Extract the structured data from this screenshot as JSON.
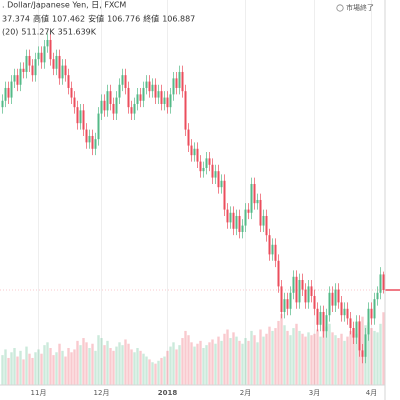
{
  "chart_data": {
    "type": "candlestick",
    "title": ". Dollar/Japanese Yen, 日, FXCM",
    "legend_row": [
      "37.374",
      "高値",
      "107.462",
      "安値",
      "106.776",
      "終値",
      "106.887"
    ],
    "volume_row": [
      "(20)",
      "511.27K",
      "351.639K"
    ],
    "status": "市場終了",
    "categories": [
      null,
      null,
      null,
      null,
      null,
      null,
      null,
      null,
      null,
      null,
      null,
      null,
      "11月",
      null,
      null,
      null,
      null,
      null,
      null,
      null,
      null,
      null,
      null,
      null,
      null,
      null,
      null,
      null,
      null,
      null,
      null,
      null,
      null,
      "12月",
      null,
      null,
      null,
      null,
      null,
      null,
      null,
      null,
      null,
      null,
      null,
      null,
      null,
      null,
      null,
      null,
      null,
      null,
      null,
      null,
      null,
      "2018",
      null,
      null,
      null,
      null,
      null,
      null,
      null,
      null,
      null,
      null,
      null,
      null,
      null,
      null,
      null,
      null,
      null,
      null,
      null,
      null,
      null,
      null,
      null,
      null,
      null,
      "2月",
      null,
      null,
      null,
      null,
      null,
      null,
      null,
      null,
      null,
      null,
      null,
      null,
      null,
      null,
      null,
      null,
      null,
      null,
      null,
      null,
      null,
      null,
      "3月",
      null,
      null,
      null,
      null,
      null,
      null,
      null,
      null,
      null,
      null,
      null,
      null,
      null,
      null,
      null,
      null,
      null,
      null,
      "4月",
      null,
      null,
      null,
      null
    ],
    "open": [
      112.6,
      112.8,
      113.2,
      112.9,
      113.4,
      113.6,
      113.3,
      113.8,
      113.7,
      114.2,
      113.9,
      113.6,
      114.1,
      114.3,
      114.0,
      114.5,
      114.7,
      114.1,
      113.8,
      114.2,
      113.5,
      113.9,
      113.6,
      113.2,
      112.9,
      112.6,
      112.1,
      112.5,
      111.9,
      111.5,
      111.7,
      111.3,
      111.6,
      112.4,
      112.8,
      112.5,
      113.1,
      112.7,
      112.4,
      112.9,
      113.3,
      113.6,
      113.2,
      112.6,
      112.4,
      112.7,
      113.0,
      112.8,
      113.2,
      113.4,
      113.1,
      113.3,
      112.9,
      113.1,
      112.7,
      112.9,
      112.6,
      113.0,
      113.5,
      113.2,
      113.7,
      113.1,
      111.9,
      111.4,
      111.1,
      111.3,
      110.9,
      110.6,
      110.7,
      111.0,
      110.8,
      110.4,
      110.6,
      110.1,
      110.3,
      109.4,
      109.0,
      109.3,
      108.8,
      109.2,
      108.7,
      108.9,
      109.4,
      109.3,
      110.2,
      109.6,
      109.7,
      108.9,
      109.2,
      108.6,
      108.0,
      108.3,
      107.8,
      107.0,
      106.2,
      106.6,
      106.3,
      106.8,
      107.3,
      106.5,
      107.2,
      106.9,
      106.5,
      107.0,
      106.7,
      106.3,
      105.8,
      106.2,
      105.6,
      106.1,
      106.8,
      106.4,
      106.9,
      106.5,
      106.1,
      106.3,
      106.0,
      105.7,
      105.4,
      105.9,
      105.0,
      104.8,
      105.5,
      106.3,
      106.0,
      106.6,
      106.8,
      107.374
    ],
    "high": [
      113.0,
      113.4,
      113.4,
      113.6,
      113.8,
      113.8,
      114.0,
      114.0,
      114.4,
      114.4,
      114.1,
      114.3,
      114.5,
      114.5,
      114.7,
      114.9,
      114.9,
      114.3,
      114.4,
      114.4,
      114.1,
      114.1,
      113.8,
      113.4,
      113.1,
      112.8,
      112.7,
      112.7,
      112.1,
      111.9,
      111.9,
      111.8,
      112.6,
      113.0,
      113.0,
      113.3,
      113.3,
      112.9,
      113.1,
      113.5,
      113.8,
      113.8,
      113.4,
      112.8,
      112.9,
      113.2,
      113.2,
      113.4,
      113.6,
      113.6,
      113.5,
      113.5,
      113.3,
      113.3,
      113.1,
      113.1,
      113.2,
      113.7,
      113.7,
      113.9,
      113.9,
      113.3,
      112.1,
      111.6,
      111.5,
      111.5,
      111.1,
      110.9,
      111.2,
      111.2,
      111.0,
      110.8,
      110.8,
      110.5,
      110.5,
      109.6,
      109.5,
      109.5,
      109.4,
      109.4,
      109.1,
      109.6,
      109.6,
      110.4,
      110.4,
      109.9,
      109.9,
      109.4,
      109.4,
      108.8,
      108.5,
      108.5,
      108.0,
      107.2,
      106.8,
      106.8,
      107.0,
      107.5,
      107.5,
      107.4,
      107.4,
      107.1,
      107.2,
      107.2,
      106.9,
      106.5,
      106.4,
      106.4,
      106.3,
      107.0,
      107.0,
      107.1,
      107.1,
      106.7,
      106.5,
      106.5,
      106.2,
      105.9,
      106.1,
      106.1,
      105.2,
      105.7,
      106.5,
      106.5,
      106.8,
      107.0,
      107.6,
      107.462
    ],
    "low": [
      112.4,
      112.6,
      112.7,
      112.7,
      113.2,
      113.1,
      113.1,
      113.5,
      113.5,
      113.7,
      113.4,
      113.4,
      113.9,
      113.8,
      113.8,
      114.3,
      113.9,
      113.6,
      113.6,
      113.3,
      113.3,
      113.4,
      113.0,
      112.7,
      112.4,
      111.9,
      111.9,
      111.7,
      111.3,
      111.3,
      111.1,
      111.1,
      111.4,
      112.2,
      112.3,
      112.3,
      112.5,
      112.2,
      112.2,
      112.7,
      113.1,
      113.0,
      112.4,
      112.2,
      112.2,
      112.5,
      112.6,
      112.6,
      113.0,
      112.9,
      112.9,
      112.7,
      112.7,
      112.5,
      112.5,
      112.4,
      112.4,
      112.8,
      113.0,
      113.0,
      112.9,
      111.7,
      111.2,
      110.9,
      110.9,
      110.7,
      110.4,
      110.4,
      110.5,
      110.6,
      110.2,
      110.2,
      109.9,
      109.9,
      109.2,
      108.8,
      108.8,
      108.6,
      108.6,
      108.5,
      108.5,
      108.7,
      109.1,
      109.1,
      109.4,
      109.4,
      108.7,
      108.7,
      108.4,
      107.8,
      107.8,
      107.6,
      106.8,
      106.0,
      106.0,
      106.1,
      106.1,
      106.6,
      106.3,
      106.3,
      106.7,
      106.3,
      106.3,
      106.5,
      106.1,
      105.6,
      105.6,
      105.4,
      105.4,
      105.9,
      106.2,
      106.2,
      106.3,
      105.9,
      105.9,
      105.8,
      105.5,
      105.2,
      105.2,
      104.8,
      104.6,
      104.6,
      105.3,
      105.8,
      105.8,
      106.4,
      106.6,
      106.776
    ],
    "close": [
      112.8,
      113.2,
      112.9,
      113.4,
      113.6,
      113.3,
      113.8,
      113.7,
      114.2,
      113.9,
      113.6,
      114.1,
      114.3,
      114.0,
      114.5,
      114.7,
      114.1,
      113.8,
      114.2,
      113.5,
      113.9,
      113.6,
      113.2,
      112.9,
      112.6,
      112.1,
      112.5,
      111.9,
      111.5,
      111.7,
      111.3,
      111.6,
      112.4,
      112.8,
      112.5,
      113.1,
      112.7,
      112.4,
      112.9,
      113.3,
      113.6,
      113.2,
      112.6,
      112.4,
      112.7,
      113.0,
      112.8,
      113.2,
      113.4,
      113.1,
      113.3,
      112.9,
      113.1,
      112.7,
      112.9,
      112.6,
      113.0,
      113.5,
      113.2,
      113.7,
      113.1,
      111.9,
      111.4,
      111.1,
      111.3,
      110.9,
      110.6,
      110.7,
      111.0,
      110.8,
      110.4,
      110.6,
      110.1,
      110.3,
      109.4,
      109.0,
      109.3,
      108.8,
      109.2,
      108.7,
      108.9,
      109.4,
      109.3,
      110.2,
      109.6,
      109.7,
      108.9,
      109.2,
      108.6,
      108.0,
      108.3,
      107.8,
      107.0,
      106.2,
      106.6,
      106.3,
      106.8,
      107.3,
      106.5,
      107.2,
      106.9,
      106.5,
      107.0,
      106.7,
      106.3,
      105.8,
      106.2,
      105.6,
      106.1,
      106.8,
      106.4,
      106.9,
      106.5,
      106.1,
      106.3,
      106.0,
      105.7,
      105.4,
      105.9,
      105.0,
      104.8,
      105.5,
      106.3,
      106.0,
      106.6,
      106.8,
      107.374,
      106.887
    ],
    "volume": [
      210,
      250,
      190,
      230,
      260,
      200,
      240,
      180,
      270,
      220,
      190,
      230,
      250,
      220,
      280,
      300,
      260,
      210,
      230,
      290,
      240,
      200,
      260,
      230,
      250,
      310,
      280,
      330,
      300,
      260,
      290,
      240,
      350,
      330,
      280,
      310,
      260,
      240,
      270,
      300,
      280,
      320,
      290,
      250,
      230,
      260,
      240,
      220,
      200,
      180,
      160,
      150,
      170,
      190,
      200,
      240,
      270,
      300,
      250,
      280,
      330,
      380,
      350,
      300,
      270,
      290,
      310,
      260,
      280,
      300,
      320,
      290,
      340,
      310,
      360,
      390,
      330,
      370,
      340,
      310,
      290,
      330,
      310,
      380,
      350,
      300,
      390,
      340,
      360,
      410,
      380,
      400,
      450,
      500,
      420,
      380,
      350,
      400,
      430,
      380,
      360,
      340,
      370,
      350,
      360,
      390,
      340,
      380,
      410,
      430,
      370,
      350,
      330,
      360,
      310,
      340,
      380,
      400,
      360,
      450,
      480,
      420,
      440,
      400,
      380,
      370,
      430,
      511.27
    ],
    "ylim": [
      103.45,
      115.48
    ],
    "volume_ylim": [
      0,
      2600
    ],
    "up_color": "#53b987",
    "down_color": "#eb4d5c",
    "label_color": "#eb4d5c",
    "ma_color": "#ff9800"
  }
}
